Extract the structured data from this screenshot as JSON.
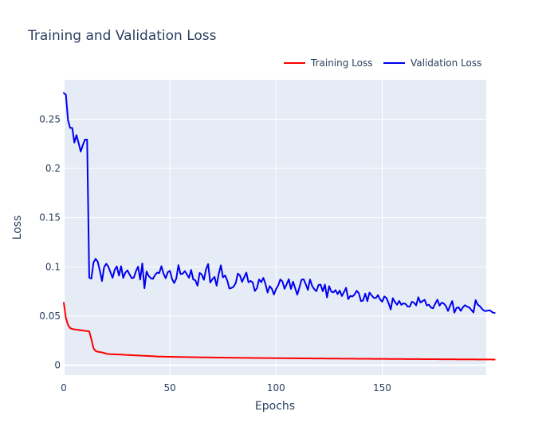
{
  "chart_data": {
    "type": "line",
    "title": "Training and Validation Loss",
    "xlabel": "Epochs",
    "ylabel": "Loss",
    "xlim": [
      0,
      199
    ],
    "ylim": [
      -0.01,
      0.29
    ],
    "xticks": [
      0,
      50,
      100,
      150
    ],
    "yticks": [
      0,
      0.05,
      0.1,
      0.15,
      0.2,
      0.25
    ],
    "grid": true,
    "legend": "top-right",
    "series": [
      {
        "name": "Training Loss",
        "color": "#ff0000",
        "values": [
          0.0635,
          0.0481,
          0.041,
          0.0379,
          0.0369,
          0.0365,
          0.0362,
          0.0359,
          0.0356,
          0.0353,
          0.035,
          0.0348,
          0.0344,
          0.0265,
          0.0173,
          0.0146,
          0.0138,
          0.0134,
          0.0131,
          0.0125,
          0.0118,
          0.0115,
          0.0113,
          0.0112,
          0.0112,
          0.0111,
          0.011,
          0.0109,
          0.0108,
          0.0106,
          0.0105,
          0.0104,
          0.0103,
          0.0102,
          0.0101,
          0.01,
          0.0099,
          0.0098,
          0.0097,
          0.0096,
          0.0095,
          0.0094,
          0.0093,
          0.0092,
          0.009,
          0.0089,
          0.0088,
          0.0088,
          0.0087,
          0.0087,
          0.0086,
          0.0086,
          0.0085,
          0.0085,
          0.0084,
          0.0084,
          0.0084,
          0.0083,
          0.0083,
          0.0082,
          0.0082,
          0.0082,
          0.0081,
          0.0081,
          0.0081,
          0.008,
          0.008,
          0.008,
          0.008,
          0.0079,
          0.0079,
          0.0079,
          0.0078,
          0.0078,
          0.0078,
          0.0078,
          0.0077,
          0.0077,
          0.0077,
          0.0077,
          0.0076,
          0.0076,
          0.0076,
          0.0076,
          0.0075,
          0.0075,
          0.0075,
          0.0075,
          0.0075,
          0.0074,
          0.0074,
          0.0074,
          0.0074,
          0.0074,
          0.0073,
          0.0073,
          0.0073,
          0.0073,
          0.0073,
          0.0072,
          0.0072,
          0.0072,
          0.0072,
          0.0072,
          0.0072,
          0.0071,
          0.0071,
          0.0071,
          0.0071,
          0.0071,
          0.0071,
          0.007,
          0.007,
          0.007,
          0.007,
          0.007,
          0.007,
          0.0069,
          0.0069,
          0.0069,
          0.0069,
          0.0069,
          0.0069,
          0.0069,
          0.0068,
          0.0068,
          0.0068,
          0.0068,
          0.0068,
          0.0068,
          0.0068,
          0.0067,
          0.0067,
          0.0067,
          0.0067,
          0.0067,
          0.0067,
          0.0067,
          0.0066,
          0.0066,
          0.0066,
          0.0066,
          0.0066,
          0.0066,
          0.0066,
          0.0065,
          0.0065,
          0.0065,
          0.0065,
          0.0065,
          0.0065,
          0.0065,
          0.0065,
          0.0064,
          0.0064,
          0.0064,
          0.0064,
          0.0064,
          0.0064,
          0.0064,
          0.0064,
          0.0063,
          0.0063,
          0.0063,
          0.0063,
          0.0063,
          0.0063,
          0.0063,
          0.0063,
          0.0062,
          0.0062,
          0.0062,
          0.0062,
          0.0062,
          0.0062,
          0.0062,
          0.0062,
          0.0061,
          0.0061,
          0.0061,
          0.0061,
          0.0061,
          0.0061,
          0.0061,
          0.0061,
          0.006,
          0.006,
          0.006,
          0.006,
          0.006,
          0.006,
          0.006,
          0.006,
          0.006,
          0.0059,
          0.0059,
          0.0059,
          0.0059,
          0.0059,
          0.0059,
          0.0059,
          0.0059,
          0.0058,
          0.0058
        ]
      },
      {
        "name": "Validation Loss",
        "color": "#0000ee",
        "values": [
          0.2766,
          0.2749,
          0.249,
          0.2411,
          0.2411,
          0.2263,
          0.2338,
          0.2257,
          0.2171,
          0.2239,
          0.2293,
          0.2293,
          0.089,
          0.0881,
          0.1044,
          0.1082,
          0.1052,
          0.0962,
          0.0856,
          0.0996,
          0.1032,
          0.1002,
          0.0945,
          0.0888,
          0.0971,
          0.1004,
          0.0911,
          0.1007,
          0.0888,
          0.0941,
          0.0965,
          0.0923,
          0.0885,
          0.0891,
          0.0955,
          0.1002,
          0.0871,
          0.1035,
          0.0783,
          0.0953,
          0.0908,
          0.0885,
          0.0878,
          0.0918,
          0.0941,
          0.0937,
          0.1007,
          0.0931,
          0.0885,
          0.0946,
          0.0959,
          0.0877,
          0.0836,
          0.0881,
          0.1018,
          0.0928,
          0.093,
          0.0957,
          0.0924,
          0.0889,
          0.0969,
          0.0872,
          0.0863,
          0.0808,
          0.0938,
          0.0922,
          0.0868,
          0.0972,
          0.1029,
          0.0841,
          0.0874,
          0.0898,
          0.0809,
          0.0929,
          0.1016,
          0.0893,
          0.0913,
          0.0862,
          0.0781,
          0.0786,
          0.0799,
          0.0836,
          0.0932,
          0.0912,
          0.0847,
          0.0895,
          0.0942,
          0.0843,
          0.0857,
          0.0841,
          0.0755,
          0.0784,
          0.0872,
          0.0844,
          0.0888,
          0.0828,
          0.0739,
          0.0804,
          0.0778,
          0.0719,
          0.0775,
          0.0811,
          0.0872,
          0.0852,
          0.0777,
          0.0824,
          0.0875,
          0.0775,
          0.085,
          0.0783,
          0.0717,
          0.0791,
          0.0869,
          0.0874,
          0.0823,
          0.0765,
          0.0871,
          0.0806,
          0.0773,
          0.0753,
          0.0816,
          0.0819,
          0.0752,
          0.082,
          0.0689,
          0.0804,
          0.0749,
          0.0741,
          0.0764,
          0.0723,
          0.0759,
          0.0704,
          0.0744,
          0.0787,
          0.0672,
          0.0705,
          0.0699,
          0.072,
          0.0757,
          0.0731,
          0.0652,
          0.0659,
          0.0728,
          0.0651,
          0.0738,
          0.0711,
          0.0686,
          0.0683,
          0.0713,
          0.0669,
          0.0646,
          0.0699,
          0.0684,
          0.0631,
          0.0567,
          0.0682,
          0.0643,
          0.0615,
          0.0654,
          0.0614,
          0.0629,
          0.0624,
          0.0597,
          0.0596,
          0.0646,
          0.0636,
          0.0608,
          0.0692,
          0.0638,
          0.0652,
          0.0665,
          0.0608,
          0.0616,
          0.0586,
          0.058,
          0.0628,
          0.0667,
          0.0606,
          0.0636,
          0.0628,
          0.0602,
          0.0552,
          0.0606,
          0.0653,
          0.0535,
          0.0583,
          0.0588,
          0.0553,
          0.0589,
          0.0611,
          0.0596,
          0.0588,
          0.0562,
          0.0537,
          0.0662,
          0.0616,
          0.06,
          0.0573,
          0.0555,
          0.0551,
          0.0558,
          0.0555,
          0.0536,
          0.0532
        ]
      }
    ]
  }
}
